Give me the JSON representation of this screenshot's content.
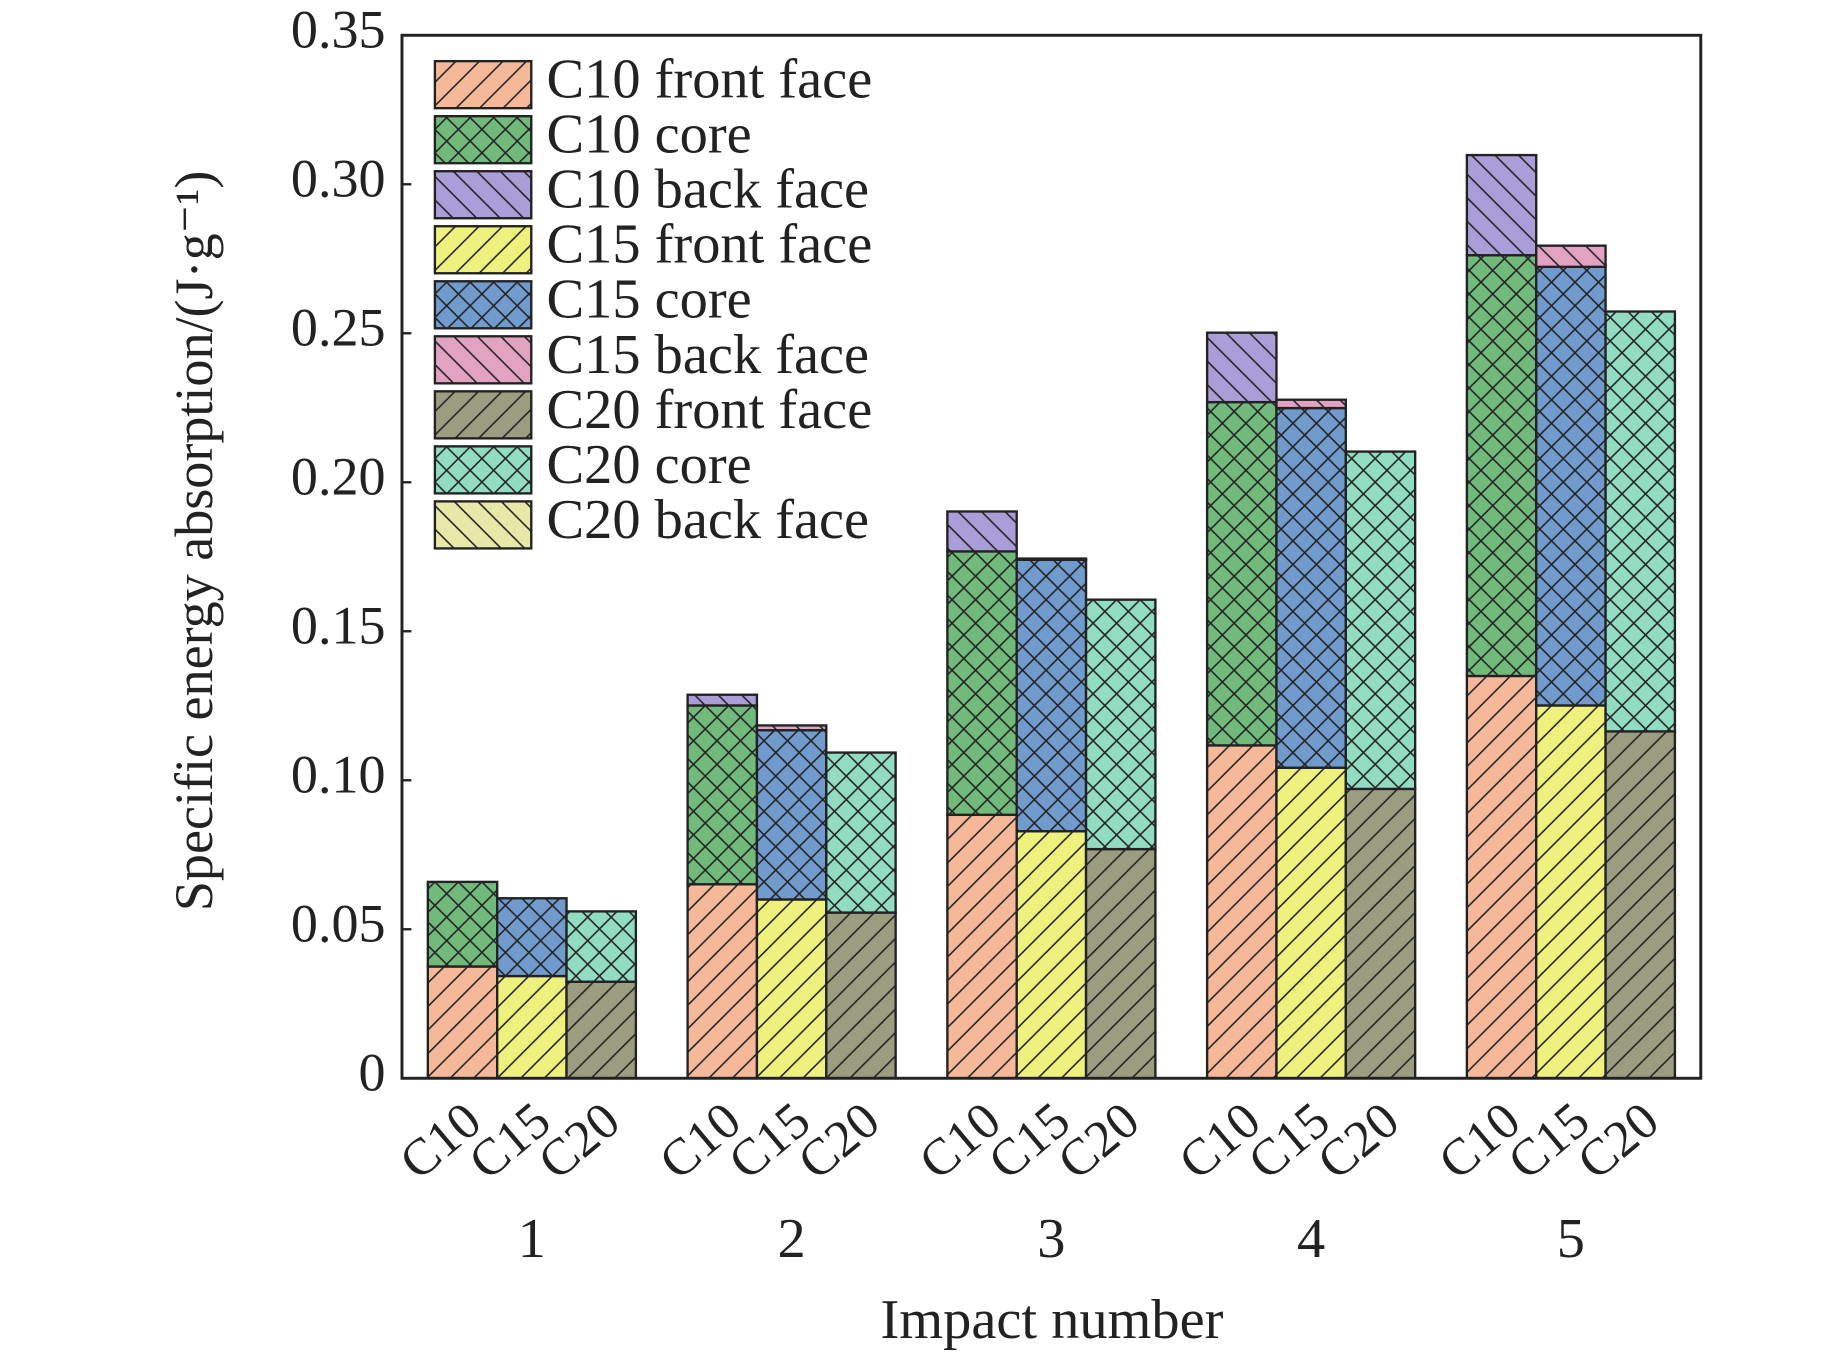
{
  "chart_data": {
    "type": "bar",
    "stacked": true,
    "xlabel": "Impact number",
    "ylabel": "Specific energy absorption/(J·g⁻¹)",
    "categories": [
      "1",
      "2",
      "3",
      "4",
      "5"
    ],
    "ylim": [
      0,
      0.35
    ],
    "yticks": [
      0,
      0.05,
      {
        "value": 0.1,
        "label": "0.10"
      },
      0.15,
      {
        "value": 0.2,
        "label": "0.20"
      },
      0.25,
      {
        "value": 0.3,
        "label": "0.30"
      },
      0.35
    ],
    "legend": "upper left",
    "stacks": [
      {
        "label": "C10",
        "series": [
          {
            "name": "C10 front face",
            "color": "#f5b99a",
            "hatch": "/",
            "values": [
              0.0375,
              0.0651,
              0.0884,
              0.1117,
              0.135
            ]
          },
          {
            "name": "C10 core",
            "color": "#72b97c",
            "hatch": "x",
            "values": [
              0.0284,
              0.06,
              0.0884,
              0.1152,
              0.1412
            ]
          },
          {
            "name": "C10 back face",
            "color": "#ab9dd8",
            "hatch": "\\",
            "values": [
              0,
              0.0036,
              0.0134,
              0.0233,
              0.0336
            ]
          }
        ]
      },
      {
        "label": "C15",
        "series": [
          {
            "name": "C15 front face",
            "color": "#eef17e",
            "hatch": "/",
            "values": [
              0.0343,
              0.06,
              0.0829,
              0.1042,
              0.1251
            ]
          },
          {
            "name": "C15 core",
            "color": "#719acd",
            "hatch": "x",
            "values": [
              0.0261,
              0.0568,
              0.0911,
              0.1207,
              0.1472
            ]
          },
          {
            "name": "C15 back face",
            "color": "#e2a3c2",
            "hatch": "\\",
            "values": [
              0,
              0.0016,
              0.0004,
              0.0028,
              0.0071
            ]
          }
        ]
      },
      {
        "label": "C20",
        "series": [
          {
            "name": "C20 front face",
            "color": "#9c9c80",
            "hatch": "/",
            "values": [
              0.0324,
              0.0556,
              0.0769,
              0.0971,
              0.1164
            ]
          },
          {
            "name": "C20 core",
            "color": "#92dcc2",
            "hatch": "x",
            "values": [
              0.0236,
              0.0537,
              0.0837,
              0.1132,
              0.1409
            ]
          },
          {
            "name": "C20 back face",
            "color": "#e8e8a8",
            "hatch": "\\",
            "values": [
              0,
              0,
              0,
              0,
              0
            ]
          }
        ]
      }
    ]
  }
}
